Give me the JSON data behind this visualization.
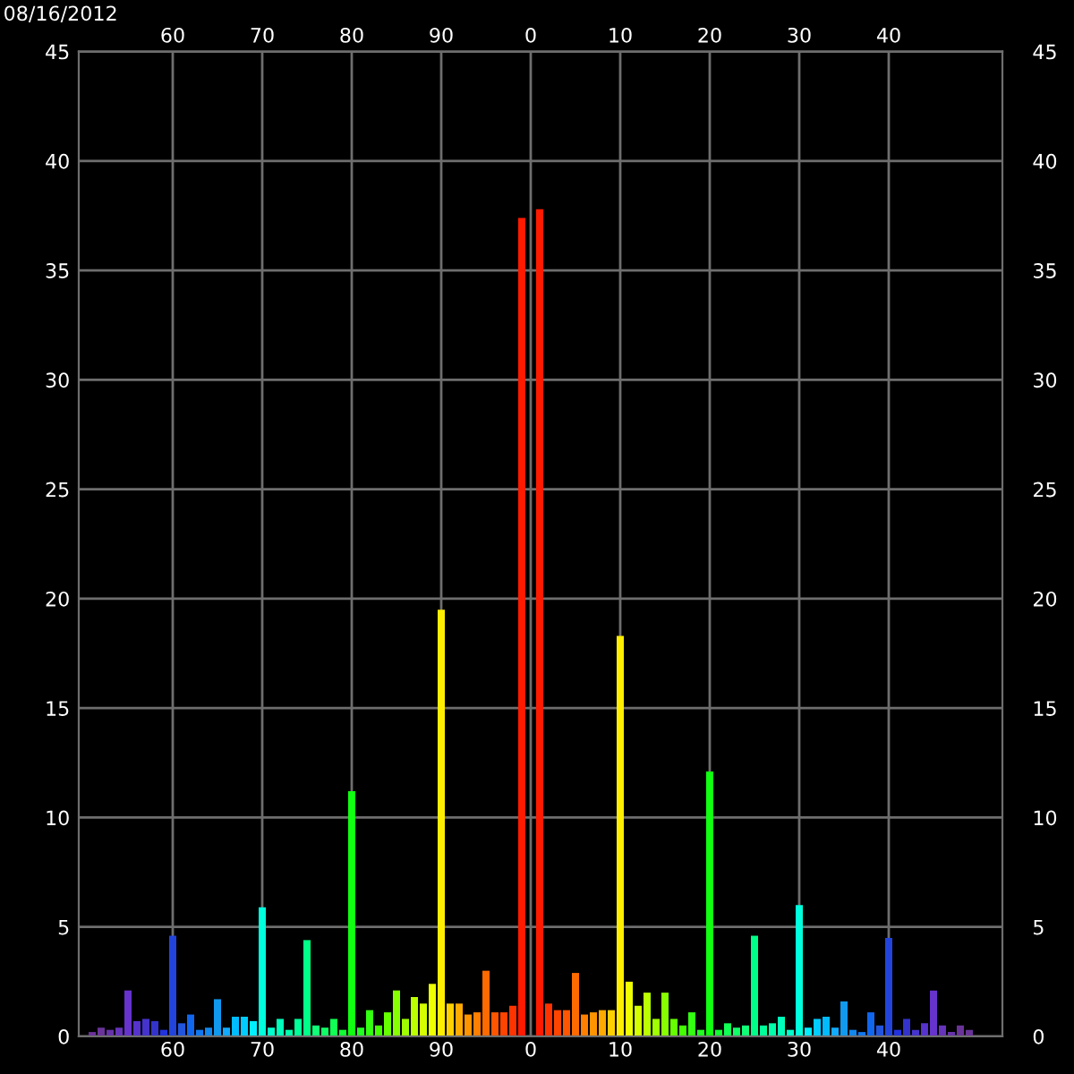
{
  "chart_data": {
    "type": "bar",
    "title": "08/16/2012",
    "categories": [
      null,
      null,
      null,
      null,
      null,
      null,
      null,
      null,
      null,
      "60",
      null,
      null,
      null,
      null,
      null,
      null,
      null,
      null,
      null,
      "70",
      null,
      null,
      null,
      null,
      null,
      null,
      null,
      null,
      null,
      "80",
      null,
      null,
      null,
      null,
      null,
      null,
      null,
      null,
      null,
      "90",
      null,
      null,
      null,
      null,
      null,
      null,
      null,
      null,
      null,
      "0",
      null,
      null,
      null,
      null,
      null,
      null,
      null,
      null,
      null,
      "10",
      null,
      null,
      null,
      null,
      null,
      null,
      null,
      null,
      null,
      "20",
      null,
      null,
      null,
      null,
      null,
      null,
      null,
      null,
      null,
      "30",
      null,
      null,
      null,
      null,
      null,
      null,
      null,
      null,
      null,
      "40",
      null,
      null,
      null,
      null,
      null,
      null,
      null,
      null,
      null
    ],
    "values": [
      0.2,
      0.4,
      0.3,
      0.4,
      2.1,
      0.7,
      0.8,
      0.7,
      0.3,
      4.6,
      0.6,
      1.0,
      0.3,
      0.4,
      1.7,
      0.4,
      0.9,
      0.9,
      0.7,
      5.9,
      0.4,
      0.8,
      0.3,
      0.8,
      4.4,
      0.5,
      0.4,
      0.8,
      0.3,
      11.2,
      0.4,
      1.2,
      0.5,
      1.1,
      2.1,
      0.8,
      1.8,
      1.5,
      2.4,
      19.5,
      1.5,
      1.5,
      1.0,
      1.1,
      3.0,
      1.1,
      1.1,
      1.4,
      37.4,
      null,
      37.8,
      1.5,
      1.2,
      1.2,
      2.9,
      1.0,
      1.1,
      1.2,
      1.2,
      18.3,
      2.5,
      1.4,
      2.0,
      0.8,
      2.0,
      0.8,
      0.5,
      1.1,
      0.3,
      12.1,
      0.3,
      0.6,
      0.4,
      0.5,
      4.6,
      0.5,
      0.6,
      0.9,
      0.3,
      6.0,
      0.4,
      0.8,
      0.9,
      0.4,
      1.6,
      0.3,
      0.2,
      1.1,
      0.5,
      4.5,
      0.3,
      0.8,
      0.3,
      0.6,
      2.1,
      0.5,
      0.2,
      0.5,
      0.3
    ],
    "colors": [
      "#6a3399",
      "#6a3399",
      "#6633aa",
      "#6633bb",
      "#6633cc",
      "#5533cc",
      "#4433cc",
      "#3333cc",
      "#2233dd",
      "#2244dd",
      "#2255dd",
      "#1166ee",
      "#1177ee",
      "#1188ee",
      "#1199ee",
      "#11aaff",
      "#00bbff",
      "#00ccff",
      "#00eeff",
      "#00ffdd",
      "#00ffcc",
      "#00ffbb",
      "#00ffaa",
      "#00ff99",
      "#00ff88",
      "#11ff77",
      "#11ff66",
      "#11ff55",
      "#11ff33",
      "#11ff11",
      "#22ff22",
      "#33ff11",
      "#44ff00",
      "#66ff00",
      "#88ff00",
      "#a0ff00",
      "#bbff00",
      "#d4ff00",
      "#eeff00",
      "#ffee00",
      "#ffd000",
      "#ffaa00",
      "#ff9400",
      "#ff7f00",
      "#ff6a00",
      "#ff5500",
      "#ff4400",
      "#ff3300",
      "#ff1a00",
      "#ff0000",
      "#ff1a00",
      "#ff3300",
      "#ff4400",
      "#ff5500",
      "#ff6a00",
      "#ff7f00",
      "#ff9400",
      "#ffaa00",
      "#ffd000",
      "#ffee00",
      "#eeff00",
      "#d4ff00",
      "#bbff00",
      "#a0ff00",
      "#88ff00",
      "#66ff00",
      "#44ff00",
      "#33ff11",
      "#22ff22",
      "#11ff11",
      "#11ff33",
      "#11ff55",
      "#11ff66",
      "#11ff77",
      "#00ff88",
      "#00ff99",
      "#00ffaa",
      "#00ffbb",
      "#00ffcc",
      "#00ffdd",
      "#00eeff",
      "#00ccff",
      "#00bbff",
      "#11aaff",
      "#1199ee",
      "#1188ee",
      "#1177ee",
      "#1166ee",
      "#2255dd",
      "#2244dd",
      "#2233dd",
      "#3333cc",
      "#4433cc",
      "#5533cc",
      "#6633cc",
      "#6633bb",
      "#6633aa",
      "#6a3399",
      "#6a3399"
    ],
    "ylim": [
      0,
      45
    ],
    "yticks": [
      0,
      5,
      10,
      15,
      20,
      25,
      30,
      35,
      40,
      45
    ],
    "y2lim": [
      0,
      45
    ],
    "y2ticks": [
      0,
      5,
      10,
      15,
      20,
      25,
      30,
      35,
      40,
      45
    ],
    "grid": true
  }
}
